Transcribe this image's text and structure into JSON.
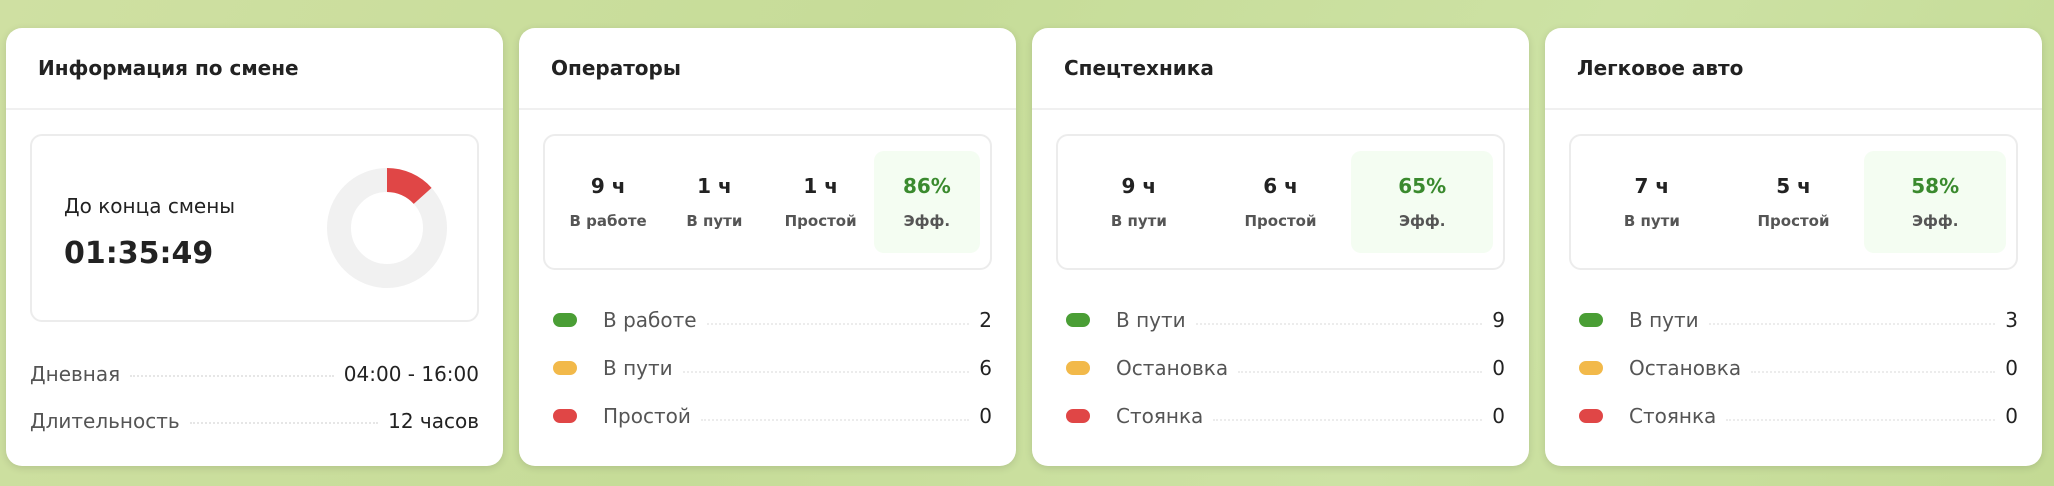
{
  "shift": {
    "title": "Информация по смене",
    "remaining_label": "До конца смены",
    "remaining_time": "01:35:49",
    "remaining_fraction": 0.133,
    "rows": [
      {
        "label": "Дневная",
        "value": "04:00 - 16:00"
      },
      {
        "label": "Длительность",
        "value": "12 часов"
      }
    ]
  },
  "cards": [
    {
      "title": "Операторы",
      "stats": [
        {
          "value": "9 ч",
          "label": "В работе"
        },
        {
          "value": "1 ч",
          "label": "В пути"
        },
        {
          "value": "1 ч",
          "label": "Простой"
        },
        {
          "value": "86%",
          "label": "Эфф.",
          "highlight": true
        }
      ],
      "legend": [
        {
          "label": "В работе",
          "value": "2",
          "color": "#4a9e35"
        },
        {
          "label": "В пути",
          "value": "6",
          "color": "#f2b94a"
        },
        {
          "label": "Простой",
          "value": "0",
          "color": "#e04646"
        }
      ]
    },
    {
      "title": "Спецтехника",
      "stats": [
        {
          "value": "9 ч",
          "label": "В пути"
        },
        {
          "value": "6 ч",
          "label": "Простой"
        },
        {
          "value": "65%",
          "label": "Эфф.",
          "highlight": true
        }
      ],
      "legend": [
        {
          "label": "В пути",
          "value": "9",
          "color": "#4a9e35"
        },
        {
          "label": "Остановка",
          "value": "0",
          "color": "#f2b94a"
        },
        {
          "label": "Стоянка",
          "value": "0",
          "color": "#e04646"
        }
      ]
    },
    {
      "title": "Легковое авто",
      "stats": [
        {
          "value": "7 ч",
          "label": "В пути"
        },
        {
          "value": "5 ч",
          "label": "Простой"
        },
        {
          "value": "58%",
          "label": "Эфф.",
          "highlight": true
        }
      ],
      "legend": [
        {
          "label": "В пути",
          "value": "3",
          "color": "#4a9e35"
        },
        {
          "label": "Остановка",
          "value": "0",
          "color": "#f2b94a"
        },
        {
          "label": "Стоянка",
          "value": "0",
          "color": "#e04646"
        }
      ]
    }
  ],
  "colors": {
    "remaining": "#e04646",
    "donut_track": "#f1f1f1",
    "efficiency": "#3a8a2e"
  }
}
